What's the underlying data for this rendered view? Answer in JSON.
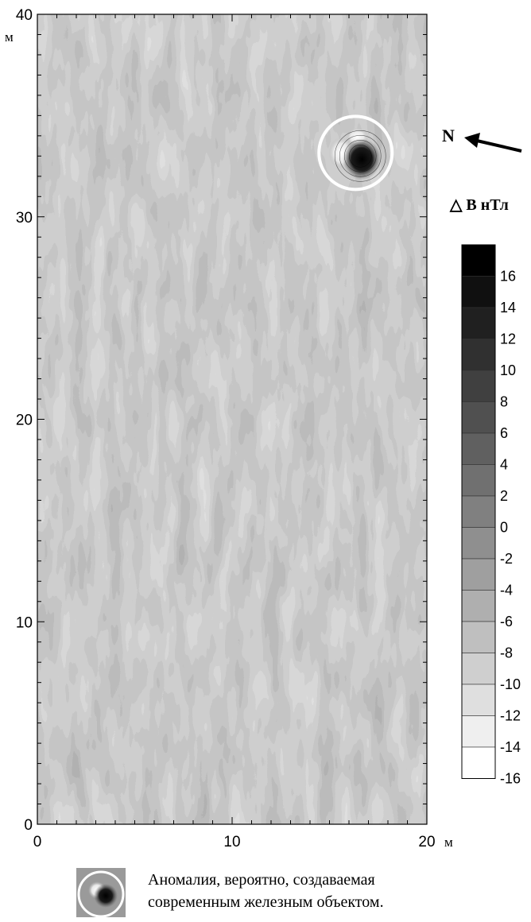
{
  "chart_data": {
    "type": "heatmap",
    "title": "",
    "xlabel": "",
    "ylabel": "",
    "x_unit": "м",
    "y_unit": "м",
    "xlim": [
      0,
      20
    ],
    "ylim": [
      0,
      40
    ],
    "x_ticks": [
      0,
      10,
      20
    ],
    "y_ticks": [
      0,
      10,
      20,
      30,
      40
    ],
    "legend_title": "△ B нТл",
    "legend_placement": "right",
    "color_scale": "grayscale (white = low, black = high)",
    "levels": [
      16,
      14,
      12,
      10,
      8,
      6,
      4,
      2,
      0,
      -2,
      -4,
      -6,
      -8,
      -10,
      -12,
      -14,
      -16
    ],
    "contour_lines": true,
    "anomaly": {
      "x": 16.5,
      "y": 33,
      "note": "circled dipole anomaly"
    }
  },
  "north_arrow": {
    "label": "N"
  },
  "caption": {
    "line1": "Аномалия, вероятно, создаваемая",
    "line2": "современным железным объектом."
  }
}
